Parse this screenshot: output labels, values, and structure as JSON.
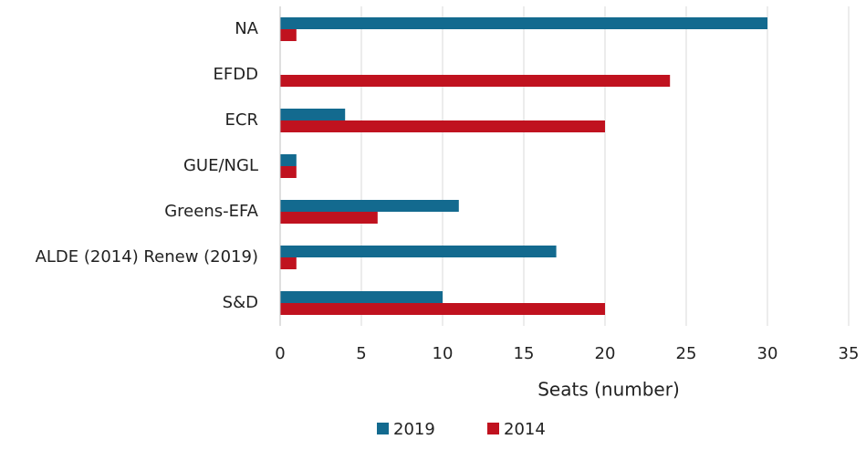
{
  "chart_data": {
    "type": "bar",
    "orientation": "horizontal",
    "categories": [
      "NA",
      "EFDD",
      "ECR",
      "GUE/NGL",
      "Greens-EFA",
      "ALDE (2014) Renew (2019)",
      "S&D"
    ],
    "series": [
      {
        "name": "2019",
        "color": "#136a8f",
        "values": [
          30,
          null,
          4,
          1,
          11,
          17,
          10
        ]
      },
      {
        "name": "2014",
        "color": "#c0121f",
        "values": [
          1,
          24,
          20,
          1,
          6,
          1,
          20
        ]
      }
    ],
    "xlabel": "Seats (number)",
    "xlim": [
      0,
      35
    ],
    "xticks": [
      0,
      5,
      10,
      15,
      20,
      25,
      30,
      35
    ],
    "grid": true,
    "legend": "bottom"
  }
}
